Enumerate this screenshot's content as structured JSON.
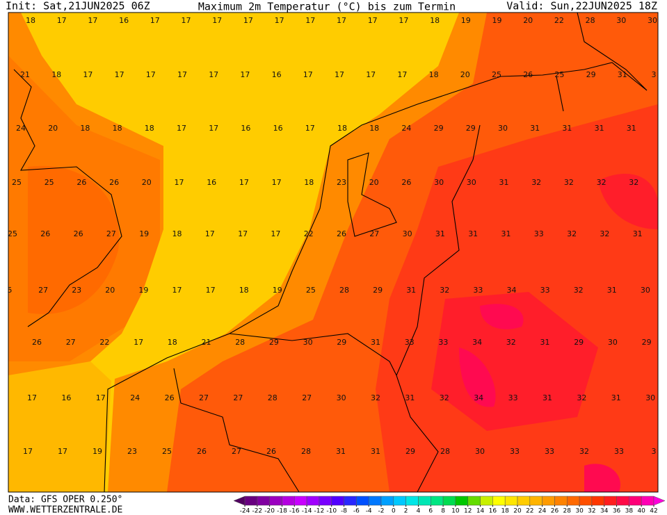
{
  "header": {
    "init": "Init: Sat,21JUN2025 06Z",
    "title": "Maximum 2m Temperatur (°C) bis zum Termin",
    "valid": "Valid: Sun,22JUN2025 18Z"
  },
  "map": {
    "labels": [
      [
        18,
        17,
        17,
        16,
        17,
        17,
        17,
        17,
        17,
        17,
        17,
        17,
        17,
        18,
        19,
        19,
        20,
        22,
        28,
        30,
        30
      ],
      [
        21,
        18,
        17,
        17,
        17,
        17,
        17,
        17,
        16,
        17,
        17,
        17,
        17,
        18,
        20,
        25,
        26,
        25,
        29,
        31,
        3
      ],
      [
        24,
        20,
        18,
        18,
        18,
        17,
        17,
        16,
        16,
        17,
        18,
        18,
        24,
        29,
        29,
        30,
        31,
        31,
        31,
        31
      ],
      [
        25,
        25,
        26,
        26,
        20,
        17,
        16,
        17,
        17,
        18,
        23,
        20,
        26,
        30,
        30,
        31,
        32,
        32,
        32,
        32
      ],
      [
        25,
        26,
        26,
        27,
        19,
        18,
        17,
        17,
        17,
        22,
        26,
        27,
        30,
        31,
        31,
        31,
        33,
        32,
        32,
        31
      ],
      [
        5,
        27,
        23,
        20,
        19,
        17,
        17,
        18,
        19,
        25,
        28,
        29,
        31,
        32,
        33,
        34,
        33,
        32,
        31,
        30
      ],
      [
        26,
        27,
        22,
        17,
        18,
        21,
        28,
        29,
        30,
        29,
        31,
        33,
        33,
        34,
        32,
        31,
        29,
        30,
        29
      ],
      [
        17,
        16,
        17,
        24,
        26,
        27,
        27,
        28,
        27,
        30,
        32,
        31,
        32,
        34,
        33,
        31,
        32,
        31,
        30
      ],
      [
        17,
        17,
        19,
        23,
        25,
        26,
        27,
        26,
        28,
        31,
        31,
        29,
        28,
        30,
        33,
        33,
        32,
        33,
        3
      ]
    ]
  },
  "footer": {
    "data": "Data: GFS OPER 0.250°",
    "site": "WWW.WETTERZENTRALE.DE"
  },
  "legend": {
    "ticks": [
      -24,
      -22,
      -20,
      -18,
      -16,
      -14,
      -12,
      -10,
      -8,
      -6,
      -4,
      -2,
      0,
      2,
      4,
      6,
      8,
      10,
      12,
      14,
      16,
      18,
      20,
      22,
      24,
      26,
      28,
      30,
      32,
      34,
      36,
      38,
      40,
      42
    ],
    "colors": [
      "#500060",
      "#680080",
      "#8000a0",
      "#9a00c0",
      "#b400e0",
      "#c800ff",
      "#a000ff",
      "#7800ff",
      "#5000ff",
      "#2828ff",
      "#0050ff",
      "#0078ff",
      "#00a0ff",
      "#00c8ff",
      "#00e6e6",
      "#00e6b4",
      "#00e682",
      "#00dc50",
      "#00c800",
      "#64dc00",
      "#c8f000",
      "#ffff00",
      "#ffe600",
      "#ffcc00",
      "#ffb400",
      "#ff9b00",
      "#ff8200",
      "#ff6900",
      "#ff5000",
      "#ff3700",
      "#ff1e1e",
      "#ff0a46",
      "#ff0078",
      "#ff00b4",
      "#ff00dc"
    ]
  }
}
